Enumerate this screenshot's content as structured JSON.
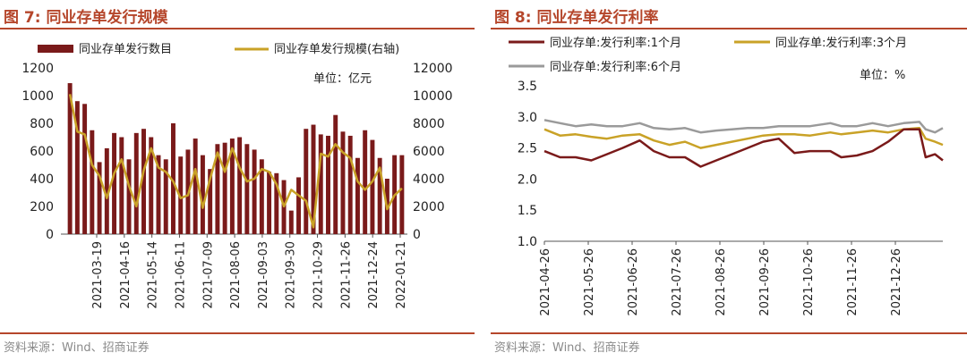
{
  "left_panel": {
    "title": "图 7: 同业存单发行规模",
    "source": "资料来源：Wind、招商证券"
  },
  "right_panel": {
    "title": "图 8: 同业存单发行利率",
    "source": "资料来源：Wind、招商证券"
  },
  "colors": {
    "accent": "#b5462b",
    "bar": "#7a1a1a",
    "gold": "#c9a227",
    "dark_red": "#7a1a1a",
    "grey": "#9a9a9a"
  },
  "chart_data": [
    {
      "id": "figure7",
      "type": "bar",
      "title": "图 7: 同业存单发行规模",
      "unit_label": "单位：亿元",
      "legend": [
        "同业存单发行数目",
        "同业存单发行规模(右轴)"
      ],
      "ylim_left": [
        0,
        1200
      ],
      "left_ticks": [
        "0",
        "200",
        "400",
        "600",
        "800",
        "1000",
        "1200"
      ],
      "ylim_right": [
        0,
        12000
      ],
      "right_ticks": [
        "0",
        "2000",
        "4000",
        "6000",
        "8000",
        "10000",
        "12000"
      ],
      "x_tick_labels": [
        "2021-03-19",
        "2021-04-16",
        "2021-05-14",
        "2021-06-11",
        "2021-07-09",
        "2021-08-06",
        "2021-09-03",
        "2021-09-30",
        "2021-10-29",
        "2021-11-26",
        "2021-12-24",
        "2022-01-21"
      ],
      "series": [
        {
          "name": "同业存单发行数目",
          "kind": "bar",
          "axis": "left",
          "values": [
            1090,
            960,
            940,
            750,
            520,
            620,
            730,
            700,
            540,
            730,
            760,
            700,
            570,
            540,
            800,
            560,
            610,
            690,
            570,
            470,
            650,
            660,
            690,
            700,
            650,
            610,
            540,
            450,
            440,
            390,
            170,
            410,
            760,
            790,
            720,
            710,
            860,
            740,
            710,
            550,
            750,
            680,
            550,
            400,
            570,
            570
          ]
        },
        {
          "name": "同业存单发行规模(右轴)",
          "kind": "line",
          "axis": "right",
          "values": [
            10100,
            7400,
            7200,
            5000,
            4200,
            2600,
            4400,
            5400,
            3500,
            2000,
            4600,
            6200,
            4800,
            4500,
            3800,
            2600,
            2800,
            4700,
            1900,
            4000,
            5900,
            4500,
            6200,
            4800,
            3800,
            4000,
            4700,
            4500,
            3600,
            2000,
            3200,
            2800,
            2400,
            500,
            5800,
            5600,
            6500,
            5900,
            5500,
            3800,
            3200,
            3800,
            4800,
            1800,
            2800,
            3300
          ]
        }
      ]
    },
    {
      "id": "figure8",
      "type": "line",
      "title": "图 8: 同业存单发行利率",
      "unit_label": "单位：%",
      "legend": [
        "同业存单:发行利率:1个月",
        "同业存单:发行利率:3个月",
        "同业存单:发行利率:6个月"
      ],
      "ylim": [
        1.0,
        3.5
      ],
      "y_ticks": [
        "1.0",
        "1.5",
        "2.0",
        "2.5",
        "3.0",
        "3.5"
      ],
      "x_tick_labels": [
        "2021-04-26",
        "2021-05-26",
        "2021-06-26",
        "2021-07-26",
        "2021-08-26",
        "2021-09-26",
        "2021-10-26",
        "2021-11-26",
        "2021-12-26"
      ],
      "x_range_days": [
        0,
        255
      ],
      "series": [
        {
          "name": "同业存单:发行利率:1个月",
          "x_days": [
            0,
            10,
            20,
            30,
            40,
            50,
            61,
            70,
            80,
            90,
            100,
            110,
            120,
            130,
            140,
            150,
            160,
            170,
            183,
            190,
            200,
            210,
            220,
            230,
            240,
            244,
            250,
            255
          ],
          "values": [
            2.45,
            2.35,
            2.35,
            2.3,
            2.4,
            2.5,
            2.62,
            2.45,
            2.35,
            2.35,
            2.2,
            2.3,
            2.4,
            2.5,
            2.6,
            2.65,
            2.42,
            2.45,
            2.45,
            2.35,
            2.38,
            2.45,
            2.6,
            2.8,
            2.8,
            2.35,
            2.4,
            2.3
          ]
        },
        {
          "name": "同业存单:发行利率:3个月",
          "x_days": [
            0,
            10,
            20,
            30,
            40,
            50,
            61,
            70,
            80,
            90,
            100,
            110,
            120,
            130,
            140,
            150,
            160,
            170,
            183,
            190,
            200,
            210,
            220,
            230,
            240,
            244,
            250,
            255
          ],
          "values": [
            2.8,
            2.7,
            2.72,
            2.68,
            2.65,
            2.7,
            2.72,
            2.62,
            2.55,
            2.6,
            2.5,
            2.55,
            2.6,
            2.65,
            2.7,
            2.72,
            2.72,
            2.7,
            2.75,
            2.72,
            2.75,
            2.78,
            2.75,
            2.8,
            2.82,
            2.65,
            2.6,
            2.55
          ]
        },
        {
          "name": "同业存单:发行利率:6个月",
          "x_days": [
            0,
            10,
            20,
            30,
            40,
            50,
            61,
            70,
            80,
            90,
            100,
            110,
            120,
            130,
            140,
            150,
            160,
            170,
            183,
            190,
            200,
            210,
            220,
            230,
            240,
            244,
            250,
            255
          ],
          "values": [
            2.95,
            2.9,
            2.85,
            2.88,
            2.85,
            2.85,
            2.9,
            2.82,
            2.8,
            2.82,
            2.75,
            2.78,
            2.8,
            2.82,
            2.82,
            2.85,
            2.85,
            2.85,
            2.9,
            2.85,
            2.85,
            2.9,
            2.85,
            2.9,
            2.92,
            2.8,
            2.75,
            2.82
          ]
        }
      ]
    }
  ]
}
